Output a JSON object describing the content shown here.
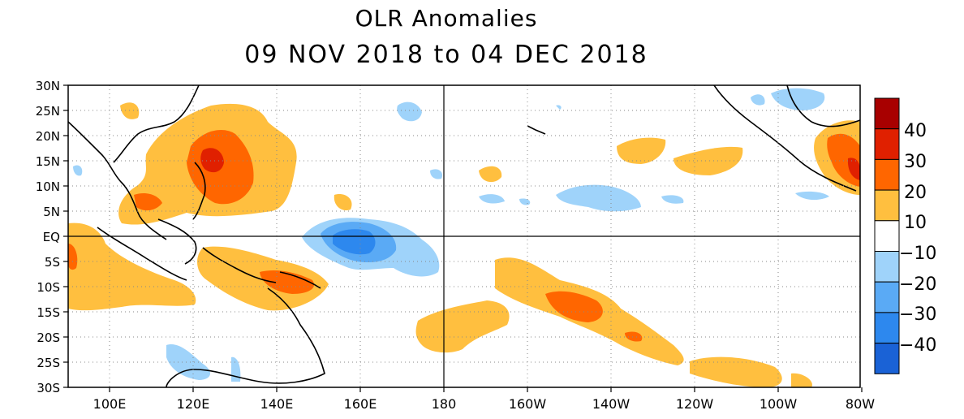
{
  "title": "OLR Anomalies",
  "subtitle": "09 NOV 2018 to 04 DEC 2018",
  "map": {
    "lon_range": [
      "90E",
      "80W"
    ],
    "lat_range": [
      "30S",
      "30N"
    ],
    "grid": "dotted",
    "reference_lines": [
      "EQ",
      "180"
    ],
    "lat_labels": [
      "30N",
      "25N",
      "20N",
      "15N",
      "10N",
      "5N",
      "EQ",
      "5S",
      "10S",
      "15S",
      "20S",
      "25S",
      "30S"
    ],
    "lon_labels": [
      "100E",
      "120E",
      "140E",
      "160E",
      "180",
      "160W",
      "140W",
      "120W",
      "100W",
      "80W"
    ]
  },
  "colorbar": {
    "labels": [
      "40",
      "30",
      "20",
      "10",
      "−10",
      "−20",
      "−30",
      "−40"
    ],
    "bins": [
      {
        "color": "#a80000"
      },
      {
        "color": "#e02000"
      },
      {
        "color": "#ff6600"
      },
      {
        "color": "#ffbf3f"
      },
      {
        "color": "#ffffff"
      },
      {
        "color": "#9fd3fa"
      },
      {
        "color": "#5aaaf5"
      },
      {
        "color": "#2d88ee"
      },
      {
        "color": "#1a62d6"
      }
    ]
  }
}
